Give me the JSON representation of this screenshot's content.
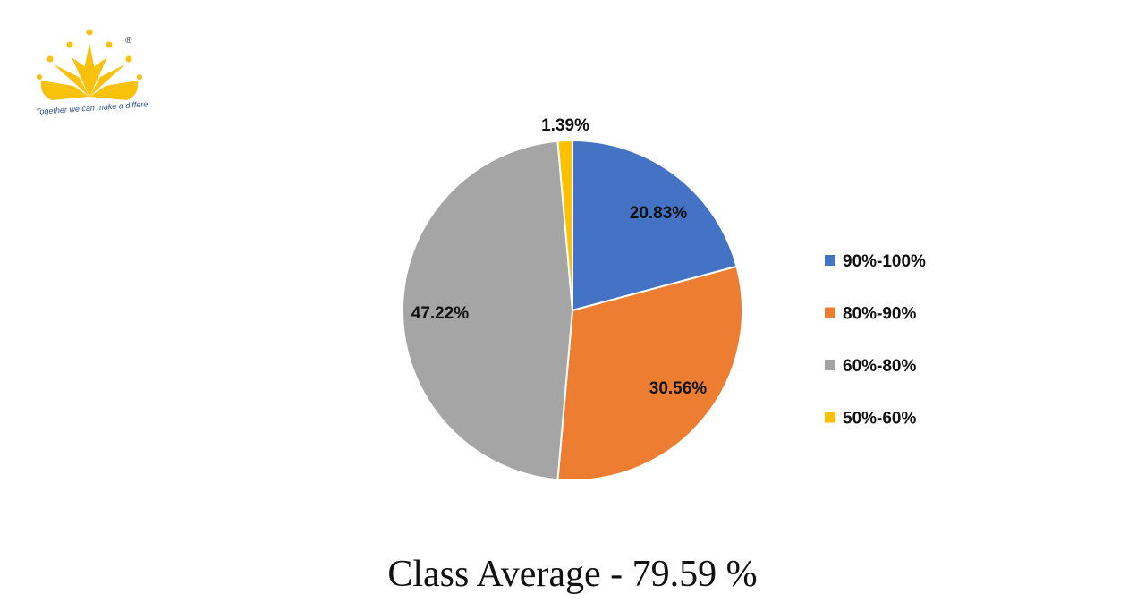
{
  "logo": {
    "tagline": "Together we can make a difference",
    "registered_mark": "®",
    "color": "#F9C00C"
  },
  "caption": "Class Average - 79.59 %",
  "chart_data": {
    "type": "pie",
    "title": "",
    "categories": [
      "90%-100%",
      "80%-90%",
      "60%-80%",
      "50%-60%"
    ],
    "values": [
      20.83,
      30.56,
      47.22,
      1.39
    ],
    "labels": [
      "20.83%",
      "30.56%",
      "47.22%",
      "1.39%"
    ],
    "colors": [
      "#4472C4",
      "#ED7D31",
      "#A5A5A5",
      "#FFC000"
    ],
    "legend_position": "right",
    "start_angle": "top, clockwise"
  }
}
